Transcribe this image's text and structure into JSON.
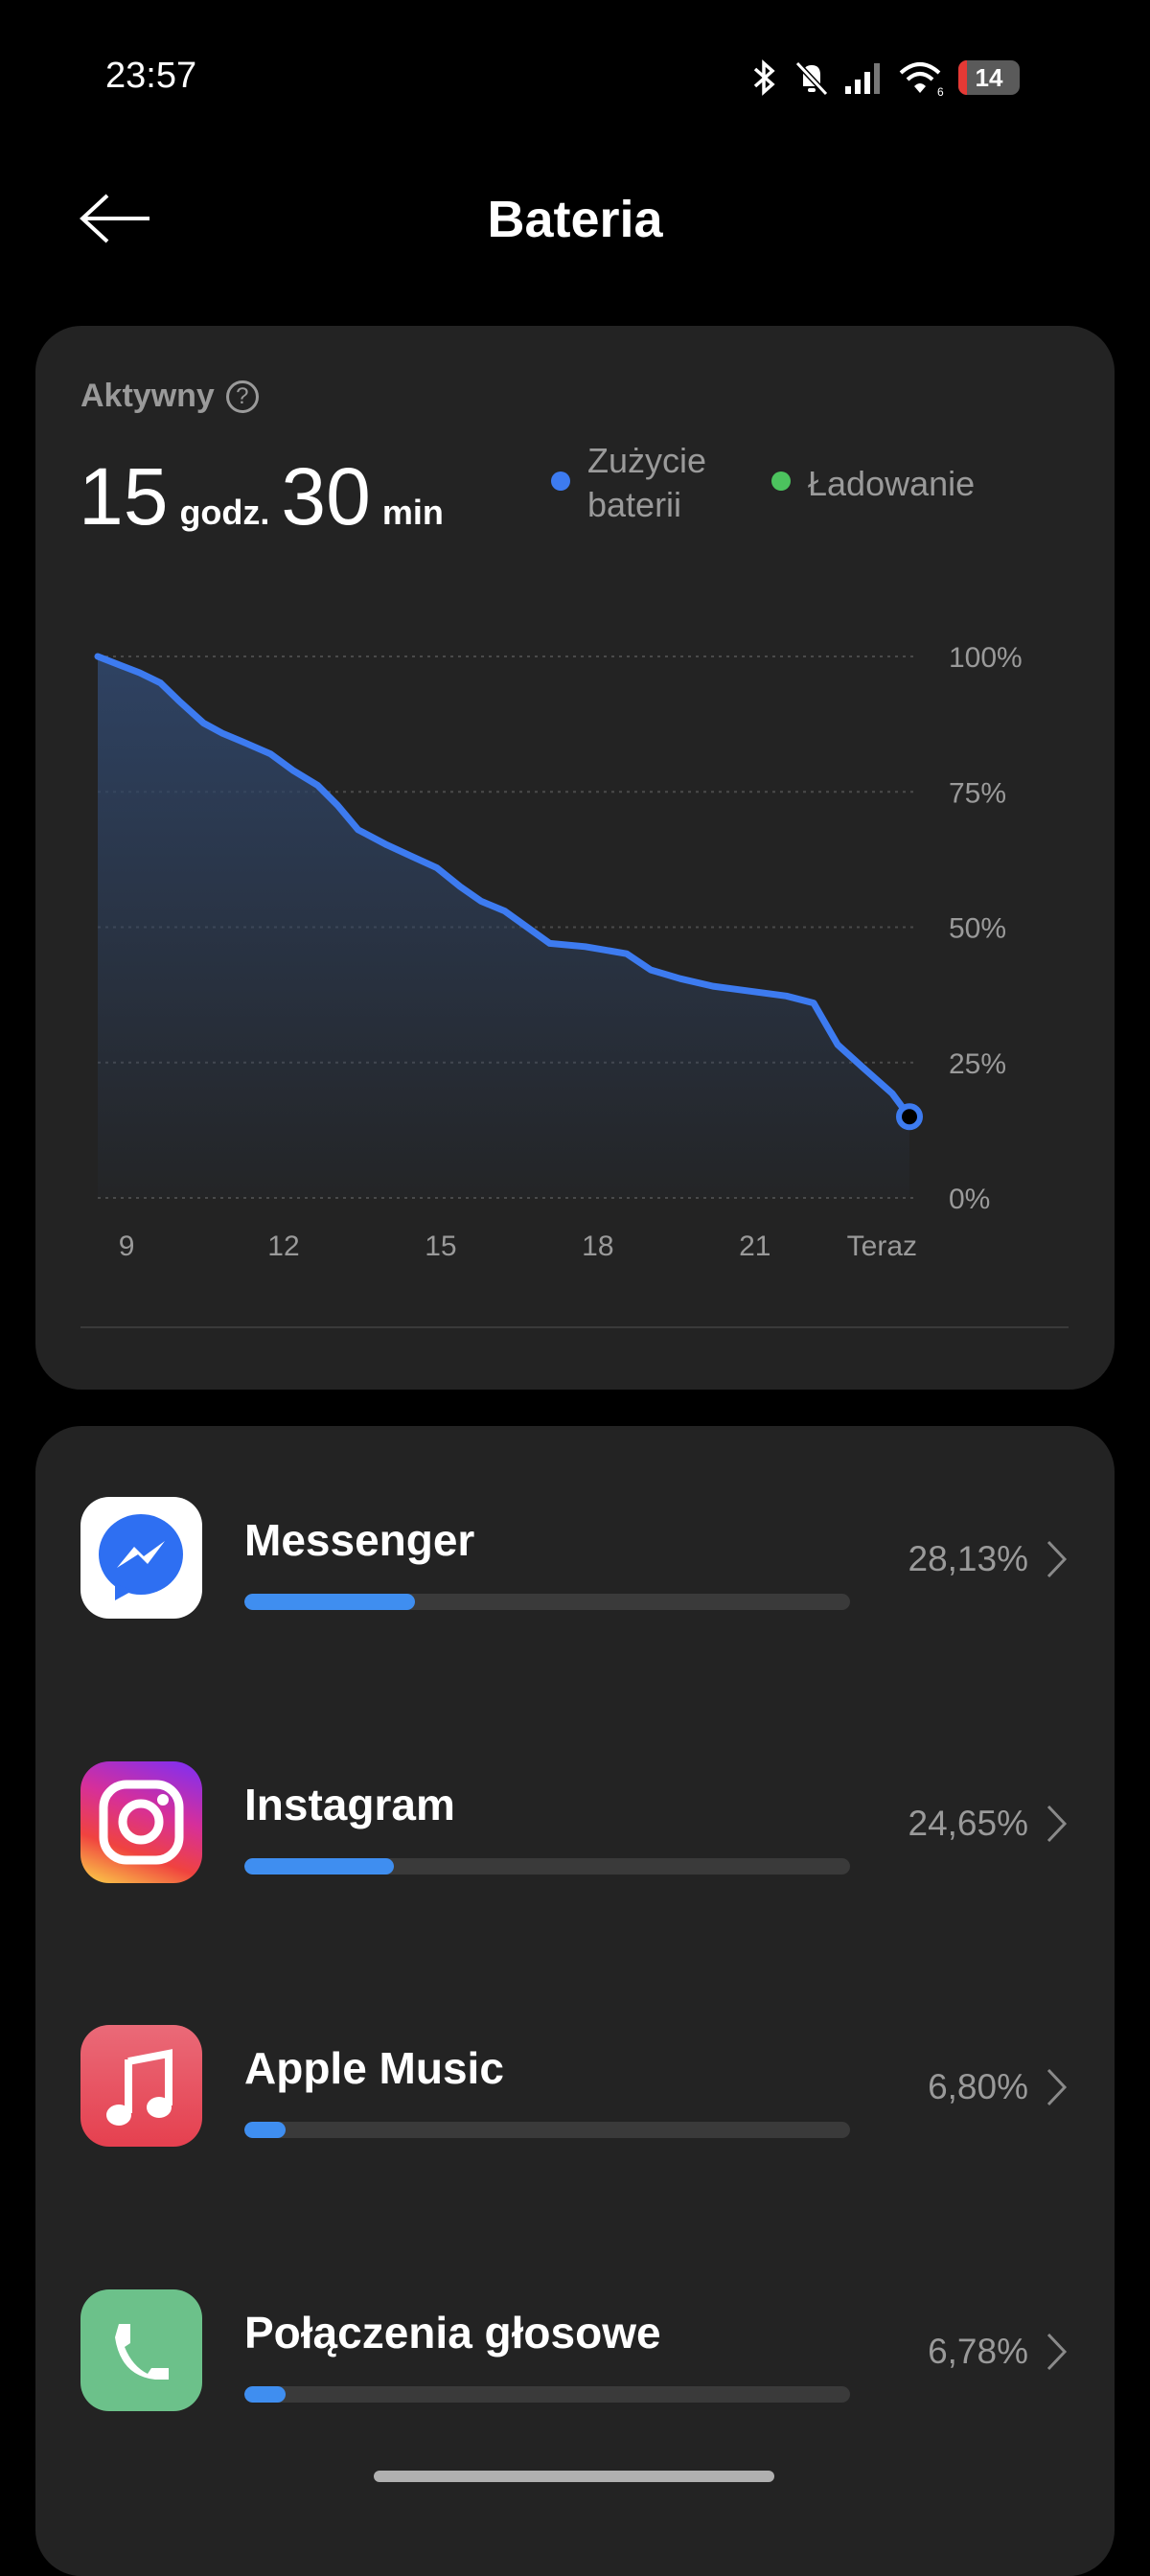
{
  "status_bar": {
    "time": "23:57",
    "battery_level": "14",
    "wifi_label": "6",
    "icons": [
      "bluetooth-icon",
      "bell-off-icon",
      "signal-icon",
      "wifi-icon",
      "battery-icon"
    ]
  },
  "header": {
    "title": "Bateria",
    "back_icon": "arrow-left-icon"
  },
  "summary": {
    "active_label": "Aktywny",
    "hours": "15",
    "hours_unit": "godz.",
    "minutes": "30",
    "minutes_unit": "min",
    "legend": [
      {
        "line1": "Zużycie",
        "line2": "baterii",
        "color": "#3d7bf0"
      },
      {
        "line1": "Ładowanie",
        "color": "#4cc35e"
      }
    ]
  },
  "chart_data": {
    "type": "area",
    "x_unit": "hour of day",
    "xlim": [
      8.45,
      23.95
    ],
    "ylim": [
      0,
      100
    ],
    "y_ticks": [
      "100%",
      "75%",
      "50%",
      "25%",
      "0%"
    ],
    "y_tick_values": [
      100,
      75,
      50,
      25,
      0
    ],
    "x_ticks": [
      "9",
      "12",
      "15",
      "18",
      "21",
      "Teraz"
    ],
    "x_tick_values": [
      9,
      12,
      15,
      18,
      21,
      23.95
    ],
    "grid": true,
    "line_color": "#3d7bf0",
    "series": [
      {
        "name": "Zużycie baterii",
        "x": [
          8.45,
          8.9,
          9.25,
          9.65,
          10.0,
          10.47,
          10.83,
          11.25,
          11.75,
          12.17,
          12.65,
          13.03,
          13.42,
          13.97,
          14.53,
          14.92,
          15.37,
          15.77,
          16.22,
          16.65,
          17.08,
          17.76,
          18.55,
          19.01,
          19.57,
          20.2,
          21.6,
          22.12,
          22.58,
          23.07,
          23.62,
          23.95
        ],
        "y": [
          100,
          98.3,
          97,
          95.1,
          91.8,
          87.7,
          85.8,
          84.1,
          82,
          79,
          76.2,
          72.5,
          68,
          65.2,
          62.7,
          61,
          57.5,
          54.8,
          53,
          50,
          47,
          46.4,
          45.1,
          42.1,
          40.5,
          39.1,
          37.3,
          36,
          28.3,
          24,
          19.3,
          15
        ]
      }
    ]
  },
  "apps": [
    {
      "name": "Messenger",
      "percent": "28,13%",
      "value": 28.13,
      "icon": "messenger-icon"
    },
    {
      "name": "Instagram",
      "percent": "24,65%",
      "value": 24.65,
      "icon": "instagram-icon"
    },
    {
      "name": "Apple Music",
      "percent": "6,80%",
      "value": 6.8,
      "icon": "apple-music-icon"
    },
    {
      "name": "Połączenia głosowe",
      "percent": "6,78%",
      "value": 6.78,
      "icon": "phone-icon"
    }
  ]
}
